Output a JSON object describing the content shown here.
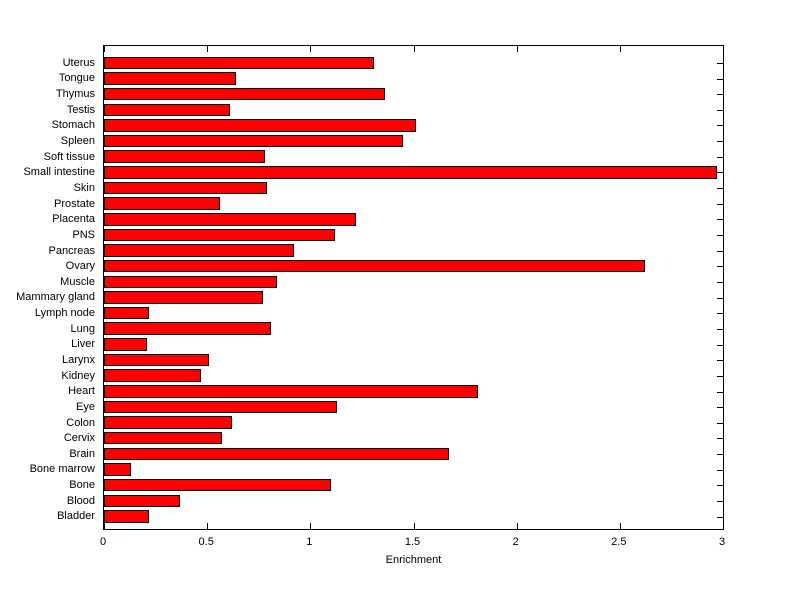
{
  "chart_data": {
    "type": "bar",
    "orientation": "horizontal",
    "title": "",
    "xlabel": "Enrichment",
    "ylabel": "",
    "xlim": [
      0,
      3
    ],
    "xticks": [
      0,
      0.5,
      1,
      1.5,
      2,
      2.5,
      3
    ],
    "xtick_labels": [
      "0",
      "0.5",
      "1",
      "1.5",
      "2",
      "2.5",
      "3"
    ],
    "grid": false,
    "legend": null,
    "bar_color": "#ff0000",
    "bar_edge_color": "#000000",
    "axis_color": "#000000",
    "background_color": "#ffffff",
    "categories": [
      "Uterus",
      "Tongue",
      "Thymus",
      "Testis",
      "Stomach",
      "Spleen",
      "Soft tissue",
      "Small intestine",
      "Skin",
      "Prostate",
      "Placenta",
      "PNS",
      "Pancreas",
      "Ovary",
      "Muscle",
      "Mammary gland",
      "Lymph node",
      "Lung",
      "Liver",
      "Larynx",
      "Kidney",
      "Heart",
      "Eye",
      "Colon",
      "Cervix",
      "Brain",
      "Bone marrow",
      "Bone",
      "Blood",
      "Bladder"
    ],
    "values": [
      1.31,
      0.64,
      1.36,
      0.61,
      1.51,
      1.45,
      0.78,
      2.97,
      0.79,
      0.56,
      1.22,
      1.12,
      0.92,
      2.62,
      0.84,
      0.77,
      0.22,
      0.81,
      0.21,
      0.51,
      0.47,
      1.81,
      1.13,
      0.62,
      0.57,
      1.67,
      0.13,
      1.1,
      0.37,
      0.22
    ]
  }
}
